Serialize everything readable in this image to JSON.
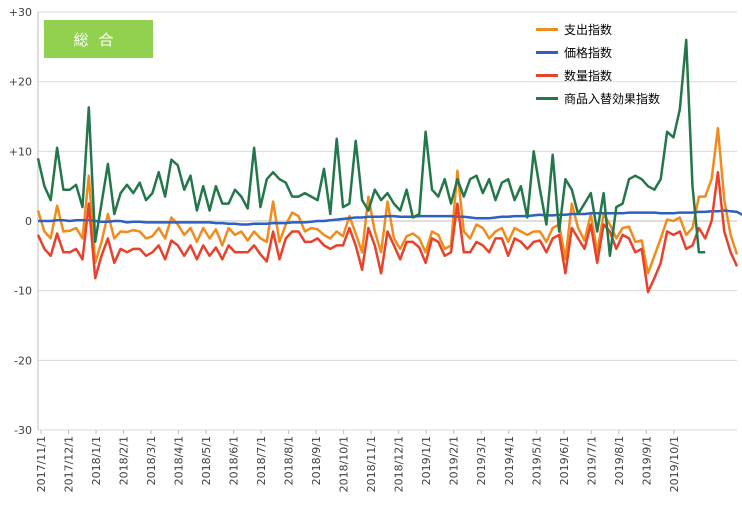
{
  "badge": {
    "label": "総合",
    "color": "#92d050"
  },
  "chart_data": {
    "type": "line",
    "ylim": [
      -30,
      30
    ],
    "y_ticks": [
      30,
      20,
      10,
      0,
      -10,
      -20,
      -30
    ],
    "y_tick_labels": [
      "+30",
      "+20",
      "+10",
      "0",
      "-10",
      "-20",
      "-30"
    ],
    "grid": true,
    "legend_position": "top-right",
    "x_tick_labels": [
      "2017/11/1",
      "2017/12/1",
      "2018/1/1",
      "2018/2/1",
      "2018/3/1",
      "2018/4/1",
      "2018/5/1",
      "2018/6/1",
      "2018/7/1",
      "2018/8/1",
      "2018/9/1",
      "2018/10/1",
      "2018/11/1",
      "2018/12/1",
      "2019/1/1",
      "2019/2/1",
      "2019/3/1",
      "2019/4/1",
      "2019/5/1",
      "2019/6/1",
      "2019/7/1",
      "2019/8/1",
      "2019/9/1",
      "2019/10/1"
    ],
    "points_per_period": 4.33,
    "series": [
      {
        "name": "支出指数",
        "color": "#f08c1e",
        "values": [
          1.5,
          -1.5,
          -2.5,
          2.2,
          -1.5,
          -1.4,
          -1.0,
          -2.5,
          6.5,
          -6.0,
          -3.0,
          1.0,
          -2.5,
          -1.5,
          -1.6,
          -1.3,
          -1.5,
          -2.5,
          -2.2,
          -1.0,
          -2.5,
          0.5,
          -0.5,
          -2.0,
          -1.0,
          -3.0,
          -1.0,
          -2.5,
          -1.2,
          -3.5,
          -1.0,
          -2.0,
          -1.5,
          -2.8,
          -1.5,
          -2.5,
          -3.0,
          2.8,
          -3.0,
          -0.5,
          1.2,
          0.7,
          -1.5,
          -1.0,
          -1.2,
          -2.0,
          -2.5,
          -1.5,
          -2.2,
          0.7,
          -1.8,
          -4.5,
          3.5,
          -1.5,
          -4.5,
          2.8,
          -2.5,
          -4.0,
          -2.2,
          -1.8,
          -2.5,
          -4.5,
          -1.5,
          -2.0,
          -4.0,
          -3.5,
          7.2,
          -1.5,
          -2.5,
          -0.5,
          -1.0,
          -2.5,
          -1.5,
          -1.0,
          -3.0,
          -1.0,
          -1.5,
          -2.0,
          -1.5,
          -1.5,
          -3.0,
          -1.0,
          -0.5,
          -5.5,
          2.5,
          -1.0,
          -2.8,
          1.0,
          -4.5,
          1.0,
          -0.5,
          -2.5,
          -1.0,
          -0.8,
          -3.0,
          -2.8,
          -7.5,
          -5.0,
          -2.5,
          0.2,
          0.0,
          0.5,
          -2.0,
          -1.0,
          3.5,
          3.5,
          6.0,
          13.3,
          3.0,
          -2.0,
          -4.8
        ]
      },
      {
        "name": "価格指数",
        "color": "#2e5fc2",
        "values": [
          0.0,
          0.0,
          0.0,
          0.1,
          0.1,
          0.0,
          0.1,
          0.1,
          0.1,
          0.0,
          -0.1,
          -0.1,
          0.0,
          0.0,
          -0.2,
          -0.1,
          -0.1,
          -0.2,
          -0.2,
          -0.2,
          -0.2,
          -0.2,
          -0.2,
          -0.2,
          -0.2,
          -0.2,
          -0.2,
          -0.2,
          -0.3,
          -0.3,
          -0.4,
          -0.4,
          -0.5,
          -0.5,
          -0.4,
          -0.4,
          -0.4,
          -0.3,
          -0.3,
          -0.3,
          -0.2,
          -0.2,
          -0.2,
          -0.1,
          0.0,
          0.0,
          0.1,
          0.2,
          0.3,
          0.4,
          0.5,
          0.5,
          0.6,
          0.6,
          0.6,
          0.7,
          0.7,
          0.6,
          0.6,
          0.6,
          0.7,
          0.7,
          0.7,
          0.7,
          0.7,
          0.7,
          0.6,
          0.6,
          0.5,
          0.4,
          0.4,
          0.4,
          0.5,
          0.6,
          0.6,
          0.7,
          0.7,
          0.7,
          0.8,
          0.9,
          0.8,
          0.8,
          0.9,
          0.9,
          1.0,
          1.0,
          1.0,
          1.1,
          1.1,
          1.1,
          1.1,
          1.1,
          1.1,
          1.2,
          1.2,
          1.2,
          1.2,
          1.2,
          1.1,
          1.1,
          1.1,
          1.2,
          1.2,
          1.2,
          1.3,
          1.3,
          1.4,
          1.4,
          1.5,
          1.4,
          1.3,
          0.8
        ]
      },
      {
        "name": "数量指数",
        "color": "#e8412c",
        "values": [
          -2.0,
          -4.0,
          -5.0,
          -1.8,
          -4.5,
          -4.5,
          -4.0,
          -5.5,
          2.5,
          -8.2,
          -5.0,
          -2.5,
          -6.0,
          -4.0,
          -4.5,
          -4.0,
          -4.0,
          -5.0,
          -4.5,
          -3.5,
          -5.5,
          -2.8,
          -3.5,
          -5.0,
          -3.5,
          -5.5,
          -3.5,
          -5.0,
          -3.8,
          -5.5,
          -3.5,
          -4.5,
          -4.5,
          -4.5,
          -3.5,
          -4.8,
          -5.8,
          -1.5,
          -5.5,
          -2.5,
          -1.5,
          -1.5,
          -3.0,
          -3.0,
          -2.5,
          -3.5,
          -4.0,
          -3.5,
          -3.5,
          -1.0,
          -3.5,
          -7.0,
          -1.0,
          -3.5,
          -7.5,
          -1.5,
          -3.5,
          -5.5,
          -3.0,
          -3.0,
          -3.8,
          -6.0,
          -2.5,
          -3.0,
          -5.0,
          -4.5,
          2.5,
          -4.5,
          -4.5,
          -3.0,
          -3.5,
          -4.5,
          -2.5,
          -2.5,
          -5.0,
          -2.5,
          -3.0,
          -4.0,
          -3.0,
          -2.8,
          -4.5,
          -2.5,
          -2.0,
          -7.5,
          -1.0,
          -2.5,
          -4.0,
          -0.5,
          -6.0,
          -0.5,
          -1.5,
          -4.0,
          -2.0,
          -2.5,
          -4.5,
          -4.0,
          -10.2,
          -8.2,
          -6.0,
          -1.5,
          -2.0,
          -1.5,
          -4.0,
          -3.5,
          -1.0,
          -2.5,
          0.0,
          7.0,
          -1.5,
          -4.5,
          -6.5
        ]
      },
      {
        "name": "商品入替効果指数",
        "color": "#23774a",
        "values": [
          9.0,
          5.0,
          3.0,
          10.5,
          4.5,
          4.5,
          5.2,
          2.0,
          16.3,
          -3.0,
          2.5,
          8.2,
          1.0,
          4.0,
          5.2,
          4.0,
          5.5,
          3.0,
          4.0,
          7.0,
          3.5,
          8.8,
          8.0,
          4.5,
          6.5,
          1.5,
          5.0,
          1.5,
          5.0,
          2.5,
          2.5,
          4.5,
          3.5,
          1.8,
          10.5,
          2.0,
          6.0,
          7.0,
          6.0,
          5.5,
          3.5,
          3.5,
          4.0,
          3.5,
          3.0,
          7.5,
          1.0,
          11.8,
          2.0,
          2.5,
          11.5,
          3.0,
          1.5,
          4.5,
          3.0,
          4.0,
          2.5,
          1.5,
          4.5,
          0.5,
          1.0,
          12.8,
          4.5,
          3.5,
          6.0,
          2.5,
          6.0,
          3.5,
          6.0,
          6.5,
          4.0,
          6.0,
          3.0,
          5.5,
          6.0,
          3.0,
          5.0,
          0.5,
          10.0,
          4.5,
          -0.5,
          9.5,
          -1.5,
          6.0,
          4.5,
          1.0,
          2.5,
          4.0,
          -1.5,
          4.0,
          -5.0,
          2.0,
          2.5,
          6.0,
          6.5,
          6.0,
          5.0,
          4.5,
          6.0,
          12.8,
          12.0,
          16.0,
          26.0,
          5.0,
          -4.5,
          -4.5
        ]
      }
    ]
  }
}
